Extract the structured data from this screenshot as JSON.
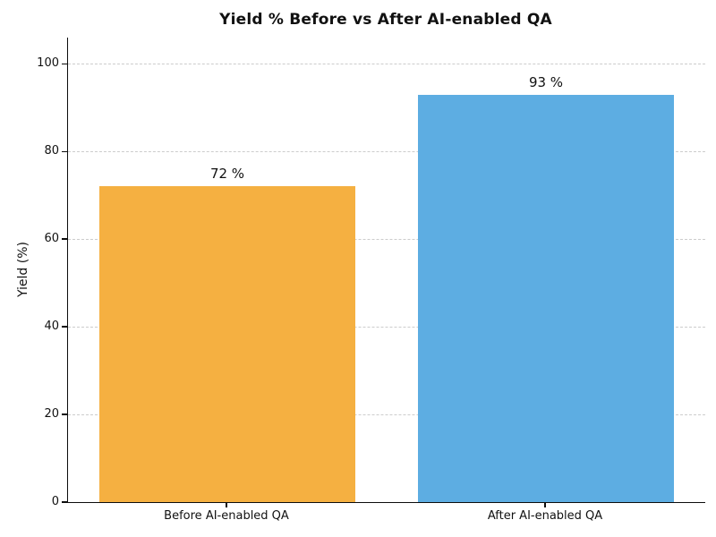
{
  "chart_data": {
    "type": "bar",
    "title": "Yield % Before vs After AI-enabled QA",
    "ylabel": "Yield (%)",
    "xlabel": "",
    "categories": [
      "Before AI-enabled QA",
      "After AI-enabled QA"
    ],
    "values": [
      72,
      93
    ],
    "value_labels": [
      "72 %",
      "93 %"
    ],
    "bar_colors": [
      "#f5b041",
      "#5dade2"
    ],
    "yticks": [
      0,
      20,
      40,
      60,
      80,
      100
    ],
    "ylim": [
      0,
      106
    ],
    "grid": "horizontal dashed gridlines at y ticks",
    "grid_color": "#cccccc",
    "spine_color": "#0d0d0d",
    "text_color": "#111111",
    "background_color": "#ffffff",
    "legend": "none",
    "spines_visible": [
      "left",
      "bottom"
    ]
  }
}
